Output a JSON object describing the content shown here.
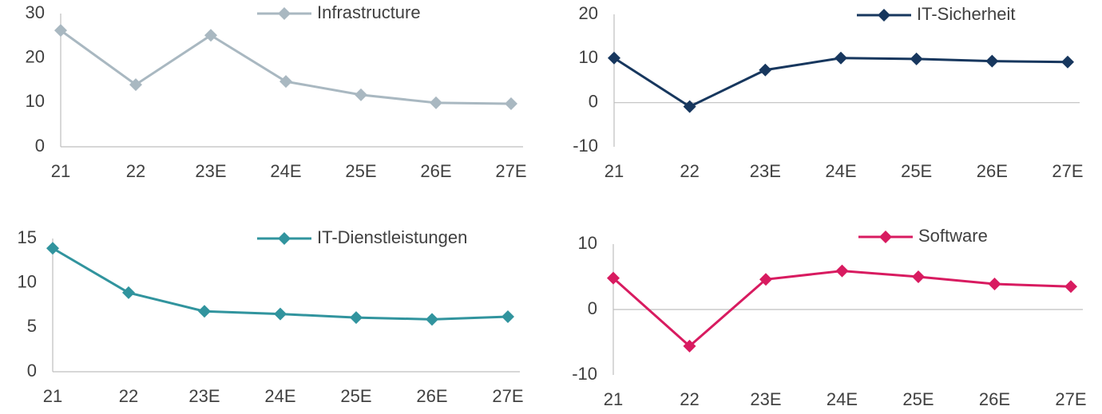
{
  "chart_data": [
    {
      "type": "line",
      "categories": [
        "21",
        "22",
        "23E",
        "24E",
        "25E",
        "26E",
        "27E"
      ],
      "series": [
        {
          "name": "Infrastructure",
          "color": "#a9b8c1",
          "values": [
            26.2,
            14.0,
            25.1,
            14.7,
            11.7,
            9.9,
            9.7
          ]
        }
      ],
      "ylim": [
        0,
        30
      ],
      "yticks": [
        0,
        10,
        20,
        30
      ]
    },
    {
      "type": "line",
      "categories": [
        "21",
        "22",
        "23E",
        "24E",
        "25E",
        "26E",
        "27E"
      ],
      "series": [
        {
          "name": "IT-Sicherheit",
          "color": "#17375e",
          "values": [
            10.1,
            -0.9,
            7.4,
            10.1,
            9.9,
            9.4,
            9.2
          ]
        }
      ],
      "ylim": [
        -10,
        20
      ],
      "yticks": [
        -10,
        0,
        10,
        20
      ]
    },
    {
      "type": "line",
      "categories": [
        "21",
        "22",
        "23E",
        "24E",
        "25E",
        "26E",
        "27E"
      ],
      "series": [
        {
          "name": "IT-Dienstleistungen",
          "color": "#31949e",
          "values": [
            13.9,
            8.9,
            6.8,
            6.5,
            6.1,
            5.9,
            6.2
          ]
        }
      ],
      "ylim": [
        0,
        15
      ],
      "yticks": [
        0,
        5,
        10,
        15
      ]
    },
    {
      "type": "line",
      "categories": [
        "21",
        "22",
        "23E",
        "24E",
        "25E",
        "26E",
        "27E"
      ],
      "series": [
        {
          "name": "Software",
          "color": "#d81b60",
          "values": [
            4.8,
            -5.6,
            4.6,
            5.9,
            5.0,
            3.9,
            3.5
          ]
        }
      ],
      "ylim": [
        -10,
        10
      ],
      "yticks": [
        -10,
        0,
        10
      ]
    }
  ]
}
